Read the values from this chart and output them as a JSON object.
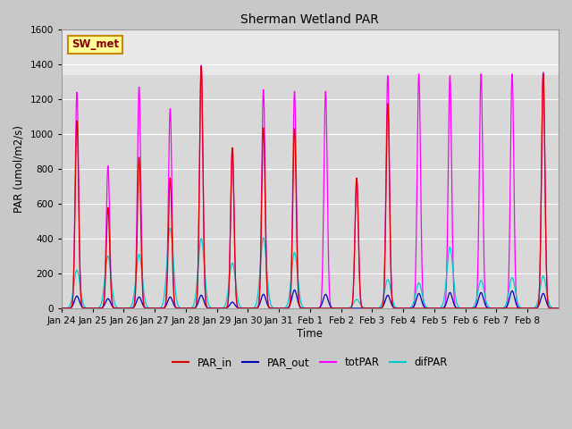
{
  "title": "Sherman Wetland PAR",
  "ylabel": "PAR (umol/m2/s)",
  "xlabel": "Time",
  "ylim": [
    0,
    1600
  ],
  "yticks": [
    0,
    200,
    400,
    600,
    800,
    1000,
    1200,
    1400,
    1600
  ],
  "legend_labels": [
    "PAR_in",
    "PAR_out",
    "totPAR",
    "difPAR"
  ],
  "legend_colors": [
    "#dd0000",
    "#0000bb",
    "#ff00ff",
    "#00cccc"
  ],
  "annotation_text": "SW_met",
  "annotation_bg": "#ffff99",
  "annotation_border": "#cc8800",
  "fig_facecolor": "#c8c8c8",
  "ax_facecolor": "#d8d8d8",
  "upper_band_color": "#e8e8e8",
  "grid_color": "#ffffff",
  "xtick_labels": [
    "Jan 24",
    "Jan 25",
    "Jan 26",
    "Jan 27",
    "Jan 28",
    "Jan 29",
    "Jan 30",
    "Jan 31",
    "Feb 1",
    "Feb 2",
    "Feb 3",
    "Feb 4",
    "Feb 5",
    "Feb 6",
    "Feb 7",
    "Feb 8"
  ],
  "days": 16,
  "pts_per_day": 96,
  "colors": {
    "PAR_in": "#dd0000",
    "PAR_out": "#0000bb",
    "totPAR": "#ff00ff",
    "difPAR": "#00cccc"
  },
  "totPAR_peaks": [
    1245,
    820,
    1275,
    1150,
    1400,
    920,
    1260,
    1250,
    1250,
    750,
    1340,
    1350,
    1340,
    1350,
    1350,
    1360
  ],
  "PARin_peaks": [
    1080,
    580,
    870,
    750,
    1395,
    925,
    1040,
    1035,
    0,
    750,
    1180,
    0,
    0,
    0,
    0,
    1350
  ],
  "PARout_peaks": [
    70,
    55,
    65,
    65,
    75,
    35,
    80,
    105,
    80,
    0,
    75,
    85,
    90,
    90,
    100,
    85
  ],
  "difPAR_peaks": [
    220,
    300,
    310,
    460,
    400,
    260,
    405,
    320,
    0,
    50,
    165,
    145,
    350,
    160,
    175,
    185
  ]
}
